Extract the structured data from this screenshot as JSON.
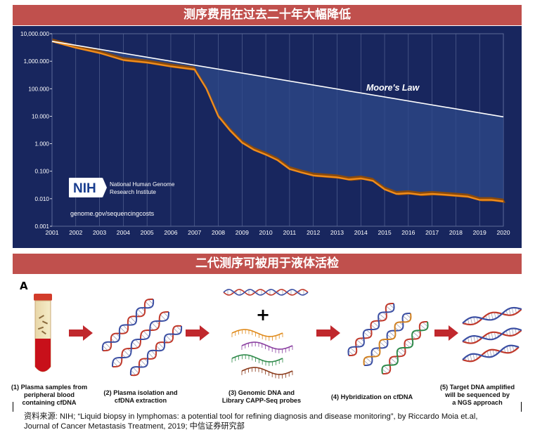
{
  "header": {
    "chart_banner": "测序费用在过去二十年大幅降低",
    "pipeline_banner": "二代测序可被用于液体活检"
  },
  "chart_data": {
    "type": "line",
    "y_scale": "log",
    "ylim": [
      0.001,
      10000
    ],
    "xlim": [
      2001,
      2020
    ],
    "y_tick_labels": [
      "10,000.000",
      "1,000.000",
      "100.000",
      "10.000",
      "1.000",
      "0.100",
      "0.010",
      "0.001"
    ],
    "y_tick_values": [
      10000,
      1000,
      100,
      10,
      1,
      0.1,
      0.01,
      0.001
    ],
    "x_tick_labels": [
      "2001",
      "2002",
      "2003",
      "2004",
      "2005",
      "2006",
      "2007",
      "2008",
      "2009",
      "2010",
      "2011",
      "2012",
      "2013",
      "2014",
      "2015",
      "2016",
      "2017",
      "2018",
      "2019",
      "2020"
    ],
    "grid": "vertical",
    "series": [
      {
        "name": "Moore's Law",
        "x": [
          2001,
          2020
        ],
        "y": [
          5300,
          9.5
        ]
      },
      {
        "x": [
          2001,
          2002,
          2003,
          2004,
          2005,
          2006,
          2007,
          2007.5,
          2008,
          2008.5,
          2009,
          2009.5,
          2010,
          2010.5,
          2011,
          2011.5,
          2012,
          2013,
          2013.5,
          2014,
          2014.5,
          2015,
          2015.5,
          2016,
          2016.5,
          2017,
          2017.5,
          2018,
          2018.5,
          2019,
          2019.5,
          2020
        ],
        "y": [
          5300,
          3100,
          2000,
          1100,
          900,
          650,
          500,
          100,
          10,
          3,
          1.1,
          0.6,
          0.4,
          0.25,
          0.12,
          0.09,
          0.07,
          0.06,
          0.05,
          0.055,
          0.045,
          0.022,
          0.015,
          0.016,
          0.014,
          0.015,
          0.014,
          0.013,
          0.012,
          0.009,
          0.009,
          0.008
        ]
      }
    ],
    "annotations": {
      "moores_law": "Moore's Law",
      "nih_logo": "NIH",
      "institute_line1": "National Human Genome",
      "institute_line2": "Research Institute",
      "url": "genome.gov/sequencingcosts"
    }
  },
  "pipeline": {
    "panel_letter": "A",
    "steps": [
      {
        "line1": "(1) Plasma samples from",
        "line2": "peripheral blood",
        "line3": "containing cfDNA"
      },
      {
        "line1": "(2) Plasma isolation and",
        "line2": "cfDNA extraction",
        "line3": ""
      },
      {
        "line1": "(3) Genomic DNA and",
        "line2": "Library CAPP-Seq probes",
        "line3": ""
      },
      {
        "line1": "(4) Hybridization on cfDNA",
        "line2": "",
        "line3": ""
      },
      {
        "line1": "(5) Target DNA amplified",
        "line2": "will be sequenced by",
        "line3": "a NGS approach"
      }
    ],
    "colors": {
      "arrow": "#c0282d",
      "dna_red": "#c0392b",
      "dna_blue": "#3b4fa3",
      "tube_blood": "#c8101a"
    }
  },
  "source": {
    "line1": "资料来源: NIH; “Liquid biopsy in lymphomas: a potential tool for refining diagnosis and disease monitoring”, by Riccardo Moia et.al,",
    "line2": "Journal of Cancer Metastasis Treatment, 2019; 中信证券研究部"
  }
}
